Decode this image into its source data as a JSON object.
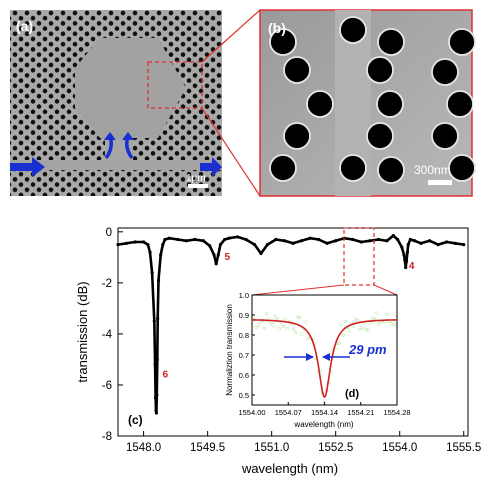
{
  "panels": {
    "a": {
      "label": "(a)",
      "scale_bar": "1μm"
    },
    "b": {
      "label": "(b)",
      "scale_bar": "300nm"
    },
    "c": {
      "label": "(c)"
    },
    "d": {
      "label": "(d)"
    }
  },
  "colors": {
    "highlight": "#e03030",
    "arrow": "#1a2fd0",
    "trace": "#000000",
    "fit": "#d02020",
    "inset_points": "#7ccf5a",
    "annotation": "#d02020",
    "linewidth_text": "#1a2fd0"
  },
  "chart_data": [
    {
      "type": "line",
      "panel": "(c)",
      "xlabel": "wavelength (nm)",
      "ylabel": "transmission (dB)",
      "xlim": [
        1547.4,
        1555.6
      ],
      "ylim": [
        -8,
        0.15
      ],
      "xticks": [
        "1548.0",
        "1549.5",
        "1551.0",
        "1552.5",
        "1554.0",
        "1555.5"
      ],
      "xtick_values": [
        1548.0,
        1549.5,
        1551.0,
        1552.5,
        1554.0,
        1555.5
      ],
      "yticks": [
        "0",
        "-2",
        "-4",
        "-6",
        "-8"
      ],
      "ytick_values": [
        0,
        -2,
        -4,
        -6,
        -8
      ],
      "annotations": [
        {
          "text": "6",
          "x": 1548.35,
          "y": -5.7
        },
        {
          "text": "5",
          "x": 1549.8,
          "y": -1.1
        },
        {
          "text": "4",
          "x": 1554.12,
          "y": -1.45
        }
      ],
      "series": [
        {
          "x": [
            1547.4,
            1547.6,
            1547.8,
            1548.0,
            1548.1,
            1548.15,
            1548.2,
            1548.25,
            1548.27,
            1548.28,
            1548.29,
            1548.3,
            1548.31,
            1548.32,
            1548.33,
            1548.35,
            1548.4,
            1548.45,
            1548.5,
            1548.6,
            1548.8,
            1549.0,
            1549.2,
            1549.4,
            1549.55,
            1549.65,
            1549.7,
            1549.75,
            1549.8,
            1549.9,
            1550.0,
            1550.2,
            1550.4,
            1550.6,
            1550.75,
            1550.9,
            1551.1,
            1551.3,
            1551.5,
            1551.7,
            1551.9,
            1552.1,
            1552.3,
            1552.5,
            1552.7,
            1552.9,
            1553.1,
            1553.3,
            1553.5,
            1553.7,
            1553.85,
            1553.95,
            1554.05,
            1554.1,
            1554.12,
            1554.14,
            1554.16,
            1554.18,
            1554.2,
            1554.25,
            1554.35,
            1554.5,
            1554.7,
            1554.9,
            1555.1,
            1555.3,
            1555.5
          ],
          "y": [
            -0.5,
            -0.45,
            -0.4,
            -0.4,
            -0.5,
            -0.8,
            -1.6,
            -3.5,
            -5.2,
            -6.5,
            -7.0,
            -7.1,
            -6.4,
            -5.0,
            -3.4,
            -1.9,
            -0.9,
            -0.5,
            -0.3,
            -0.25,
            -0.3,
            -0.35,
            -0.3,
            -0.35,
            -0.55,
            -0.9,
            -1.25,
            -0.9,
            -0.5,
            -0.3,
            -0.25,
            -0.2,
            -0.3,
            -0.5,
            -0.85,
            -0.5,
            -0.3,
            -0.35,
            -0.45,
            -0.35,
            -0.25,
            -0.3,
            -0.45,
            -0.35,
            -0.25,
            -0.3,
            -0.4,
            -0.35,
            -0.3,
            -0.35,
            -0.15,
            -0.3,
            -0.6,
            -0.9,
            -1.1,
            -1.4,
            -1.15,
            -0.8,
            -0.5,
            -0.3,
            -0.35,
            -0.45,
            -0.35,
            -0.5,
            -0.4,
            -0.45,
            -0.5
          ]
        }
      ]
    },
    {
      "type": "scatter",
      "panel": "(d)",
      "xlabel": "wavelength (nm)",
      "ylabel": "Normaliztion transmission",
      "xlim": [
        1554.0,
        1554.28
      ],
      "ylim": [
        0.45,
        1.0
      ],
      "xticks": [
        "1554.00",
        "1554.07",
        "1554.14",
        "1554.21",
        "1554.28"
      ],
      "xtick_values": [
        1554.0,
        1554.07,
        1554.14,
        1554.21,
        1554.28
      ],
      "yticks": [
        "1.0",
        "0.9",
        "0.8",
        "0.7",
        "0.6",
        "0.5"
      ],
      "ytick_values": [
        1.0,
        0.9,
        0.8,
        0.7,
        0.6,
        0.5
      ],
      "linewidth_label": "29 pm",
      "fit": {
        "shape": "lorentzian",
        "center": 1554.14,
        "depth": 0.39,
        "baseline": 0.88,
        "fwhm": 0.029
      }
    }
  ]
}
